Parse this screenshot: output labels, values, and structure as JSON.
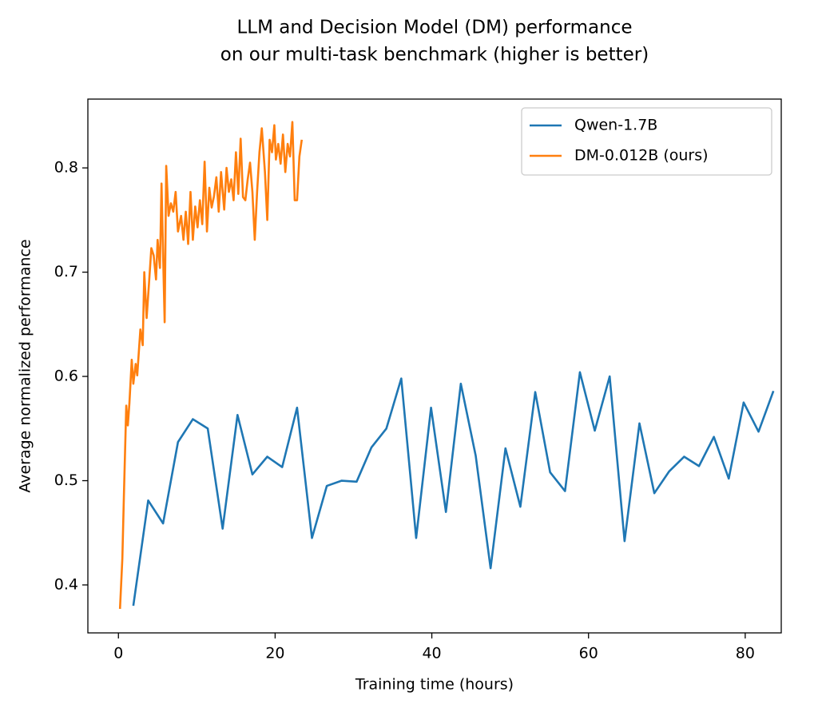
{
  "chart_data": {
    "type": "line",
    "title": [
      "LLM and Decision Model (DM) performance",
      "on our multi-task benchmark (higher is better)"
    ],
    "xlabel": "Training time (hours)",
    "ylabel": "Average normalized performance",
    "xlim": [
      -3.9,
      84.6
    ],
    "ylim": [
      0.354,
      0.866
    ],
    "xticks": [
      0,
      20,
      40,
      60,
      80
    ],
    "yticks": [
      0.4,
      0.5,
      0.6,
      0.7,
      0.8
    ],
    "legend": "upper right",
    "series": [
      {
        "name": "Qwen-1.7B",
        "color": "#1f77b4",
        "x": [
          1.9,
          3.8,
          5.7,
          7.6,
          9.5,
          11.4,
          13.3,
          15.2,
          17.1,
          19.0,
          20.9,
          22.8,
          24.7,
          26.6,
          28.5,
          30.4,
          32.3,
          34.2,
          36.1,
          38.0,
          39.9,
          41.8,
          43.7,
          45.6,
          47.5,
          49.4,
          51.3,
          53.2,
          55.1,
          57.0,
          58.9,
          60.8,
          62.7,
          64.6,
          66.5,
          68.4,
          70.3,
          72.2,
          74.1,
          76.0,
          77.9,
          79.8,
          81.7,
          83.6
        ],
        "values": [
          0.38,
          0.481,
          0.459,
          0.537,
          0.559,
          0.55,
          0.454,
          0.563,
          0.506,
          0.523,
          0.513,
          0.57,
          0.445,
          0.495,
          0.5,
          0.499,
          0.532,
          0.55,
          0.598,
          0.445,
          0.57,
          0.47,
          0.593,
          0.524,
          0.416,
          0.531,
          0.475,
          0.585,
          0.508,
          0.49,
          0.604,
          0.548,
          0.6,
          0.442,
          0.555,
          0.488,
          0.509,
          0.523,
          0.514,
          0.542,
          0.502,
          0.575,
          0.547,
          0.586
        ]
      },
      {
        "name": "DM-0.012B (ours)",
        "color": "#ff7f0e",
        "x": [
          0.2,
          0.5,
          0.7,
          1.0,
          1.2,
          1.4,
          1.7,
          1.9,
          2.2,
          2.4,
          2.8,
          3.1,
          3.3,
          3.6,
          3.9,
          4.2,
          4.5,
          4.8,
          5.0,
          5.3,
          5.5,
          5.7,
          5.9,
          6.1,
          6.4,
          6.7,
          7.0,
          7.3,
          7.6,
          8.0,
          8.3,
          8.6,
          8.9,
          9.2,
          9.5,
          9.8,
          10.1,
          10.4,
          10.7,
          11.0,
          11.3,
          11.6,
          11.9,
          12.2,
          12.5,
          12.8,
          13.1,
          13.5,
          13.8,
          14.1,
          14.4,
          14.7,
          15.0,
          15.3,
          15.6,
          15.9,
          16.2,
          16.5,
          16.8,
          17.1,
          17.4,
          17.7,
          18.0,
          18.3,
          18.7,
          19.0,
          19.3,
          19.6,
          19.9,
          20.1,
          20.4,
          20.7,
          21.0,
          21.3,
          21.6,
          21.9,
          22.2,
          22.5,
          22.8,
          23.1,
          23.4
        ],
        "values": [
          0.377,
          0.425,
          0.486,
          0.572,
          0.553,
          0.574,
          0.616,
          0.593,
          0.612,
          0.601,
          0.645,
          0.63,
          0.7,
          0.656,
          0.689,
          0.723,
          0.716,
          0.693,
          0.731,
          0.704,
          0.785,
          0.717,
          0.652,
          0.802,
          0.754,
          0.766,
          0.758,
          0.777,
          0.739,
          0.754,
          0.731,
          0.758,
          0.727,
          0.777,
          0.731,
          0.763,
          0.743,
          0.769,
          0.746,
          0.806,
          0.739,
          0.781,
          0.762,
          0.773,
          0.791,
          0.758,
          0.796,
          0.76,
          0.8,
          0.777,
          0.789,
          0.769,
          0.815,
          0.775,
          0.828,
          0.772,
          0.769,
          0.789,
          0.805,
          0.777,
          0.731,
          0.777,
          0.815,
          0.838,
          0.796,
          0.75,
          0.827,
          0.815,
          0.841,
          0.808,
          0.823,
          0.804,
          0.832,
          0.796,
          0.823,
          0.811,
          0.844,
          0.769,
          0.769,
          0.811,
          0.827
        ]
      }
    ]
  }
}
